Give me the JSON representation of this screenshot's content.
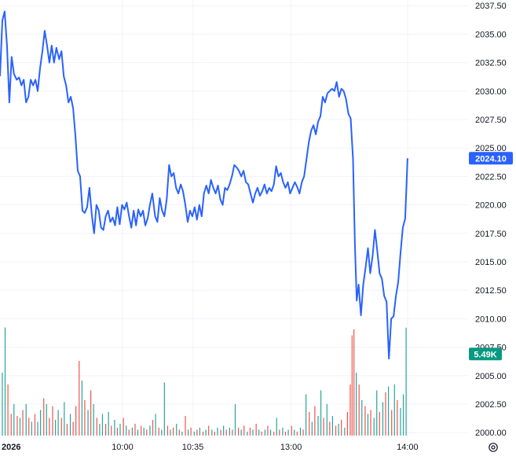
{
  "chart_data": {
    "type": "line",
    "y_axis_side": "right",
    "ylim": [
      1999.6,
      2038.0
    ],
    "y_ticks": [
      "2037.50",
      "2035.00",
      "2032.50",
      "2030.00",
      "2027.50",
      "2025.00",
      "2022.50",
      "2020.00",
      "2017.50",
      "2015.00",
      "2012.50",
      "2010.00",
      "2007.50",
      "2005.00",
      "2002.50",
      "2000.00"
    ],
    "x_labels": [
      {
        "label": "2026",
        "t": 0
      },
      {
        "label": "10:00",
        "t": 0.263
      },
      {
        "label": "10:35",
        "t": 0.414
      },
      {
        "label": "13:00",
        "t": 0.625
      },
      {
        "label": "14:00",
        "t": 0.875
      }
    ],
    "last_price": {
      "label": "2024.10",
      "value": 2024.1
    },
    "volume_marker": {
      "label": "5.49K",
      "value": 2006.9
    },
    "colors": {
      "line": "#2962ff",
      "grid": "#f0f3fa",
      "vol_up": "#26a69a",
      "vol_down": "#ef5350",
      "price_badge": "#2962ff",
      "volume_badge": "#089981"
    },
    "price_series": [
      [
        0.0,
        2031.3
      ],
      [
        0.005,
        2036.2
      ],
      [
        0.01,
        2037.0
      ],
      [
        0.015,
        2034.0
      ],
      [
        0.02,
        2029.0
      ],
      [
        0.025,
        2033.0
      ],
      [
        0.03,
        2031.5
      ],
      [
        0.036,
        2031.0
      ],
      [
        0.041,
        2031.2
      ],
      [
        0.046,
        2030.5
      ],
      [
        0.051,
        2031.0
      ],
      [
        0.056,
        2029.0
      ],
      [
        0.061,
        2029.5
      ],
      [
        0.066,
        2031.0
      ],
      [
        0.071,
        2030.5
      ],
      [
        0.076,
        2031.0
      ],
      [
        0.081,
        2030.0
      ],
      [
        0.086,
        2032.0
      ],
      [
        0.091,
        2033.5
      ],
      [
        0.096,
        2035.3
      ],
      [
        0.101,
        2034.0
      ],
      [
        0.106,
        2032.5
      ],
      [
        0.111,
        2034.0
      ],
      [
        0.116,
        2032.5
      ],
      [
        0.121,
        2033.8
      ],
      [
        0.127,
        2032.8
      ],
      [
        0.132,
        2033.5
      ],
      [
        0.137,
        2031.3
      ],
      [
        0.142,
        2030.5
      ],
      [
        0.147,
        2029.0
      ],
      [
        0.152,
        2029.5
      ],
      [
        0.157,
        2028.5
      ],
      [
        0.162,
        2026.0
      ],
      [
        0.167,
        2023.0
      ],
      [
        0.172,
        2022.5
      ],
      [
        0.177,
        2019.5
      ],
      [
        0.182,
        2019.3
      ],
      [
        0.187,
        2019.8
      ],
      [
        0.192,
        2021.5
      ],
      [
        0.197,
        2019.2
      ],
      [
        0.202,
        2017.5
      ],
      [
        0.207,
        2020.0
      ],
      [
        0.212,
        2019.5
      ],
      [
        0.217,
        2018.0
      ],
      [
        0.222,
        2017.8
      ],
      [
        0.227,
        2019.0
      ],
      [
        0.232,
        2019.5
      ],
      [
        0.237,
        2018.5
      ],
      [
        0.242,
        2018.9
      ],
      [
        0.247,
        2018.2
      ],
      [
        0.252,
        2019.8
      ],
      [
        0.257,
        2018.3
      ],
      [
        0.262,
        2020.0
      ],
      [
        0.267,
        2019.6
      ],
      [
        0.272,
        2020.2
      ],
      [
        0.277,
        2019.0
      ],
      [
        0.282,
        2018.0
      ],
      [
        0.287,
        2019.5
      ],
      [
        0.292,
        2018.2
      ],
      [
        0.297,
        2019.6
      ],
      [
        0.302,
        2019.0
      ],
      [
        0.307,
        2019.5
      ],
      [
        0.312,
        2018.2
      ],
      [
        0.317,
        2018.8
      ],
      [
        0.322,
        2020.0
      ],
      [
        0.327,
        2021.0
      ],
      [
        0.333,
        2019.0
      ],
      [
        0.338,
        2018.5
      ],
      [
        0.343,
        2020.6
      ],
      [
        0.348,
        2019.5
      ],
      [
        0.353,
        2019.0
      ],
      [
        0.358,
        2020.5
      ],
      [
        0.363,
        2023.5
      ],
      [
        0.368,
        2022.5
      ],
      [
        0.373,
        2022.8
      ],
      [
        0.378,
        2021.5
      ],
      [
        0.383,
        2021.0
      ],
      [
        0.388,
        2021.8
      ],
      [
        0.393,
        2021.2
      ],
      [
        0.398,
        2020.0
      ],
      [
        0.403,
        2018.5
      ],
      [
        0.408,
        2019.5
      ],
      [
        0.413,
        2019.0
      ],
      [
        0.418,
        2019.8
      ],
      [
        0.423,
        2018.7
      ],
      [
        0.428,
        2020.0
      ],
      [
        0.433,
        2019.0
      ],
      [
        0.438,
        2021.0
      ],
      [
        0.443,
        2021.7
      ],
      [
        0.448,
        2021.0
      ],
      [
        0.453,
        2022.2
      ],
      [
        0.458,
        2021.5
      ],
      [
        0.463,
        2021.0
      ],
      [
        0.468,
        2021.7
      ],
      [
        0.473,
        2020.5
      ],
      [
        0.478,
        2020.0
      ],
      [
        0.483,
        2021.5
      ],
      [
        0.488,
        2021.3
      ],
      [
        0.493,
        2021.8
      ],
      [
        0.498,
        2022.5
      ],
      [
        0.503,
        2023.5
      ],
      [
        0.508,
        2023.3
      ],
      [
        0.513,
        2023.0
      ],
      [
        0.518,
        2022.5
      ],
      [
        0.523,
        2023.0
      ],
      [
        0.528,
        2022.0
      ],
      [
        0.533,
        2021.8
      ],
      [
        0.538,
        2021.0
      ],
      [
        0.543,
        2020.2
      ],
      [
        0.548,
        2021.0
      ],
      [
        0.553,
        2021.5
      ],
      [
        0.558,
        2020.8
      ],
      [
        0.563,
        2021.2
      ],
      [
        0.568,
        2021.8
      ],
      [
        0.573,
        2021.0
      ],
      [
        0.578,
        2021.5
      ],
      [
        0.583,
        2021.2
      ],
      [
        0.588,
        2021.8
      ],
      [
        0.593,
        2023.4
      ],
      [
        0.598,
        2022.5
      ],
      [
        0.603,
        2022.8
      ],
      [
        0.608,
        2022.0
      ],
      [
        0.613,
        2021.5
      ],
      [
        0.618,
        2022.0
      ],
      [
        0.623,
        2021.0
      ],
      [
        0.628,
        2021.5
      ],
      [
        0.633,
        2022.0
      ],
      [
        0.638,
        2021.6
      ],
      [
        0.643,
        2021.0
      ],
      [
        0.648,
        2022.0
      ],
      [
        0.653,
        2022.5
      ],
      [
        0.658,
        2024.0
      ],
      [
        0.663,
        2025.5
      ],
      [
        0.668,
        2026.5
      ],
      [
        0.673,
        2027.0
      ],
      [
        0.678,
        2026.2
      ],
      [
        0.683,
        2027.3
      ],
      [
        0.688,
        2027.8
      ],
      [
        0.693,
        2029.5
      ],
      [
        0.698,
        2029.0
      ],
      [
        0.703,
        2029.8
      ],
      [
        0.708,
        2030.0
      ],
      [
        0.713,
        2030.2
      ],
      [
        0.718,
        2030.0
      ],
      [
        0.723,
        2030.8
      ],
      [
        0.728,
        2029.5
      ],
      [
        0.733,
        2030.2
      ],
      [
        0.738,
        2030.0
      ],
      [
        0.743,
        2029.3
      ],
      [
        0.748,
        2028.0
      ],
      [
        0.753,
        2027.6
      ],
      [
        0.758,
        2024.0
      ],
      [
        0.762,
        2016.5
      ],
      [
        0.766,
        2011.6
      ],
      [
        0.77,
        2013.0
      ],
      [
        0.775,
        2010.3
      ],
      [
        0.78,
        2013.0
      ],
      [
        0.785,
        2014.5
      ],
      [
        0.79,
        2016.2
      ],
      [
        0.795,
        2014.0
      ],
      [
        0.8,
        2015.5
      ],
      [
        0.805,
        2017.8
      ],
      [
        0.81,
        2016.0
      ],
      [
        0.815,
        2014.0
      ],
      [
        0.82,
        2013.5
      ],
      [
        0.825,
        2012.0
      ],
      [
        0.83,
        2011.5
      ],
      [
        0.835,
        2006.5
      ],
      [
        0.84,
        2010.0
      ],
      [
        0.845,
        2010.2
      ],
      [
        0.85,
        2012.0
      ],
      [
        0.855,
        2013.2
      ],
      [
        0.86,
        2015.8
      ],
      [
        0.865,
        2018.0
      ],
      [
        0.87,
        2018.8
      ],
      [
        0.875,
        2024.1
      ]
    ],
    "volume_series": [
      [
        0.005,
        3200,
        "up"
      ],
      [
        0.011,
        5500,
        "up"
      ],
      [
        0.017,
        2600,
        "down"
      ],
      [
        0.024,
        1100,
        "down"
      ],
      [
        0.03,
        1600,
        "up"
      ],
      [
        0.037,
        1000,
        "down"
      ],
      [
        0.043,
        900,
        "up"
      ],
      [
        0.049,
        1300,
        "down"
      ],
      [
        0.056,
        1600,
        "up"
      ],
      [
        0.062,
        900,
        "down"
      ],
      [
        0.068,
        700,
        "up"
      ],
      [
        0.075,
        1100,
        "down"
      ],
      [
        0.081,
        700,
        "up"
      ],
      [
        0.087,
        1300,
        "up"
      ],
      [
        0.094,
        1900,
        "down"
      ],
      [
        0.1,
        1600,
        "up"
      ],
      [
        0.106,
        900,
        "down"
      ],
      [
        0.113,
        1500,
        "down"
      ],
      [
        0.119,
        800,
        "up"
      ],
      [
        0.125,
        1300,
        "up"
      ],
      [
        0.132,
        900,
        "down"
      ],
      [
        0.138,
        1700,
        "up"
      ],
      [
        0.144,
        600,
        "down"
      ],
      [
        0.151,
        1100,
        "up"
      ],
      [
        0.157,
        700,
        "down"
      ],
      [
        0.163,
        1500,
        "down"
      ],
      [
        0.17,
        3800,
        "down"
      ],
      [
        0.176,
        2800,
        "up"
      ],
      [
        0.182,
        1800,
        "down"
      ],
      [
        0.189,
        1300,
        "up"
      ],
      [
        0.195,
        2300,
        "down"
      ],
      [
        0.201,
        1600,
        "up"
      ],
      [
        0.208,
        900,
        "down"
      ],
      [
        0.214,
        600,
        "up"
      ],
      [
        0.22,
        1100,
        "up"
      ],
      [
        0.227,
        600,
        "down"
      ],
      [
        0.233,
        1200,
        "up"
      ],
      [
        0.239,
        500,
        "down"
      ],
      [
        0.246,
        800,
        "up"
      ],
      [
        0.252,
        400,
        "down"
      ],
      [
        0.258,
        600,
        "up"
      ],
      [
        0.265,
        900,
        "down"
      ],
      [
        0.271,
        500,
        "up"
      ],
      [
        0.277,
        300,
        "down"
      ],
      [
        0.284,
        400,
        "up"
      ],
      [
        0.29,
        600,
        "down"
      ],
      [
        0.296,
        300,
        "up"
      ],
      [
        0.303,
        500,
        "down"
      ],
      [
        0.309,
        400,
        "up"
      ],
      [
        0.315,
        300,
        "down"
      ],
      [
        0.322,
        500,
        "up"
      ],
      [
        0.328,
        800,
        "down"
      ],
      [
        0.334,
        1100,
        "up"
      ],
      [
        0.341,
        400,
        "down"
      ],
      [
        0.347,
        300,
        "up"
      ],
      [
        0.353,
        2700,
        "up"
      ],
      [
        0.36,
        500,
        "down"
      ],
      [
        0.366,
        300,
        "up"
      ],
      [
        0.372,
        400,
        "down"
      ],
      [
        0.379,
        600,
        "up"
      ],
      [
        0.385,
        300,
        "down"
      ],
      [
        0.391,
        200,
        "up"
      ],
      [
        0.398,
        1000,
        "down"
      ],
      [
        0.404,
        300,
        "up"
      ],
      [
        0.41,
        400,
        "down"
      ],
      [
        0.417,
        200,
        "up"
      ],
      [
        0.423,
        300,
        "down"
      ],
      [
        0.429,
        400,
        "up"
      ],
      [
        0.436,
        200,
        "down"
      ],
      [
        0.442,
        300,
        "up"
      ],
      [
        0.448,
        500,
        "down"
      ],
      [
        0.455,
        300,
        "up"
      ],
      [
        0.461,
        200,
        "down"
      ],
      [
        0.467,
        400,
        "up"
      ],
      [
        0.474,
        300,
        "down"
      ],
      [
        0.48,
        500,
        "up"
      ],
      [
        0.486,
        300,
        "down"
      ],
      [
        0.493,
        400,
        "up"
      ],
      [
        0.499,
        300,
        "down"
      ],
      [
        0.505,
        1600,
        "up"
      ],
      [
        0.512,
        400,
        "down"
      ],
      [
        0.518,
        300,
        "up"
      ],
      [
        0.524,
        500,
        "down"
      ],
      [
        0.531,
        200,
        "up"
      ],
      [
        0.537,
        400,
        "down"
      ],
      [
        0.543,
        300,
        "up"
      ],
      [
        0.55,
        600,
        "down"
      ],
      [
        0.556,
        300,
        "up"
      ],
      [
        0.562,
        200,
        "down"
      ],
      [
        0.569,
        300,
        "up"
      ],
      [
        0.575,
        500,
        "down"
      ],
      [
        0.581,
        300,
        "up"
      ],
      [
        0.588,
        200,
        "down"
      ],
      [
        0.594,
        900,
        "up"
      ],
      [
        0.6,
        300,
        "down"
      ],
      [
        0.607,
        400,
        "up"
      ],
      [
        0.613,
        200,
        "down"
      ],
      [
        0.619,
        300,
        "up"
      ],
      [
        0.626,
        500,
        "down"
      ],
      [
        0.632,
        300,
        "up"
      ],
      [
        0.638,
        200,
        "down"
      ],
      [
        0.645,
        400,
        "up"
      ],
      [
        0.651,
        300,
        "down"
      ],
      [
        0.657,
        2100,
        "up"
      ],
      [
        0.664,
        1200,
        "down"
      ],
      [
        0.67,
        700,
        "up"
      ],
      [
        0.676,
        1500,
        "down"
      ],
      [
        0.683,
        1000,
        "up"
      ],
      [
        0.689,
        2300,
        "up"
      ],
      [
        0.695,
        900,
        "down"
      ],
      [
        0.702,
        1600,
        "up"
      ],
      [
        0.708,
        700,
        "down"
      ],
      [
        0.714,
        1000,
        "up"
      ],
      [
        0.721,
        500,
        "down"
      ],
      [
        0.727,
        600,
        "up"
      ],
      [
        0.733,
        800,
        "down"
      ],
      [
        0.74,
        400,
        "up"
      ],
      [
        0.746,
        1200,
        "down"
      ],
      [
        0.752,
        2600,
        "down"
      ],
      [
        0.756,
        5100,
        "down"
      ],
      [
        0.76,
        5400,
        "down"
      ],
      [
        0.765,
        3200,
        "up"
      ],
      [
        0.771,
        2600,
        "down"
      ],
      [
        0.777,
        1800,
        "up"
      ],
      [
        0.784,
        1500,
        "down"
      ],
      [
        0.79,
        1100,
        "up"
      ],
      [
        0.796,
        1300,
        "down"
      ],
      [
        0.803,
        900,
        "up"
      ],
      [
        0.809,
        2300,
        "up"
      ],
      [
        0.815,
        1200,
        "down"
      ],
      [
        0.822,
        1700,
        "up"
      ],
      [
        0.828,
        2200,
        "down"
      ],
      [
        0.834,
        2500,
        "up"
      ],
      [
        0.841,
        1300,
        "down"
      ],
      [
        0.847,
        2600,
        "up"
      ],
      [
        0.853,
        1800,
        "down"
      ],
      [
        0.86,
        1400,
        "up"
      ],
      [
        0.866,
        2100,
        "up"
      ],
      [
        0.872,
        5490,
        "up"
      ]
    ]
  }
}
